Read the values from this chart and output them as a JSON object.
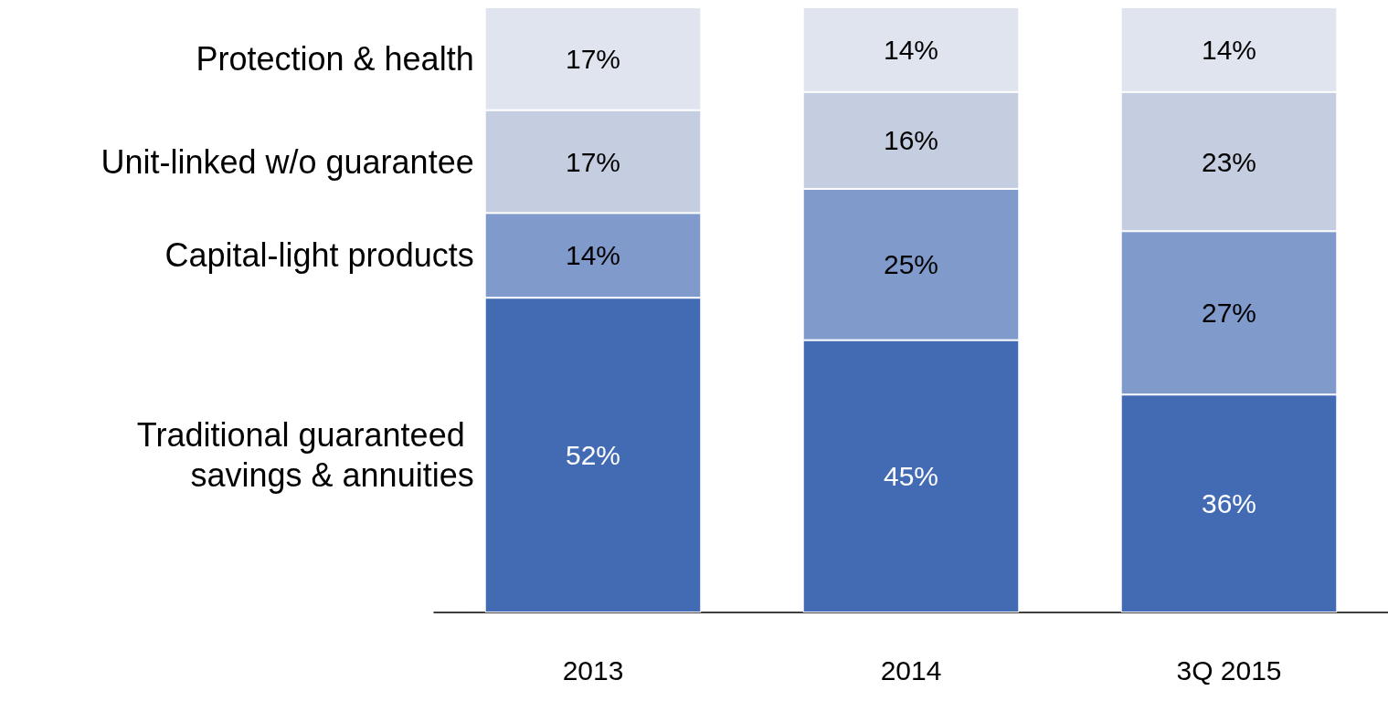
{
  "chart_data": {
    "type": "bar",
    "stacked": true,
    "categories": [
      "2013",
      "2014",
      "3Q 2015"
    ],
    "series": [
      {
        "name": "Traditional guaranteed savings & annuities",
        "color": "#436bb3",
        "values": [
          52,
          45,
          36
        ],
        "value_labels": [
          "52%",
          "45%",
          "36%"
        ]
      },
      {
        "name": "Capital-light products",
        "color": "#7f9acb",
        "values": [
          14,
          25,
          27
        ],
        "value_labels": [
          "14%",
          "25%",
          "27%"
        ]
      },
      {
        "name": "Unit-linked w/o guarantee",
        "color": "#c5cde1",
        "values": [
          17,
          16,
          23
        ],
        "value_labels": [
          "17%",
          "16%",
          "23%"
        ]
      },
      {
        "name": "Protection & health",
        "color": "#dfe4ef",
        "values": [
          17,
          14,
          14
        ],
        "value_labels": [
          "17%",
          "14%",
          "14%"
        ]
      }
    ]
  }
}
